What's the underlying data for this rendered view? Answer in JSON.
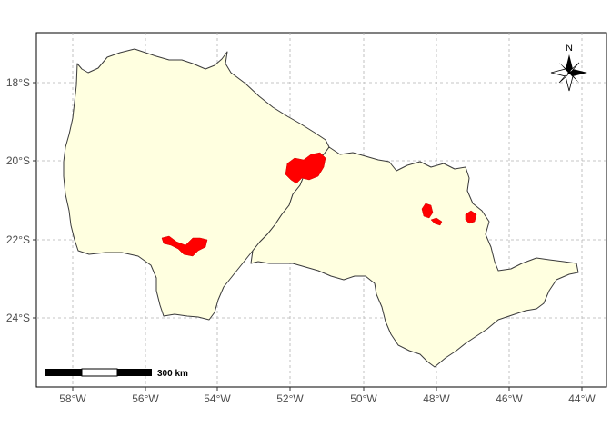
{
  "map": {
    "colors": {
      "land_fill": "#ffffe0",
      "land_stroke": "#3a3a3a",
      "highlight_fill": "#ff0000",
      "grid": "#b3b3b3",
      "frame": "#000000"
    },
    "x_axis": {
      "ticks": [
        "58°W",
        "56°W",
        "54°W",
        "52°W",
        "50°W",
        "48°W",
        "46°W",
        "44°W"
      ]
    },
    "y_axis": {
      "ticks": [
        "18°S",
        "20°S",
        "22°S",
        "24°S"
      ]
    },
    "scale_bar": {
      "label": "300 km"
    },
    "north_arrow": {
      "label": "N",
      "icon": "compass-rose-icon"
    },
    "regions": [
      "mato-grosso-do-sul",
      "sao-paulo"
    ],
    "highlighted_areas": [
      "highlight-north-east-ms",
      "highlight-south-ms",
      "highlight-sp-center",
      "highlight-sp-center-small",
      "highlight-sp-east"
    ]
  }
}
